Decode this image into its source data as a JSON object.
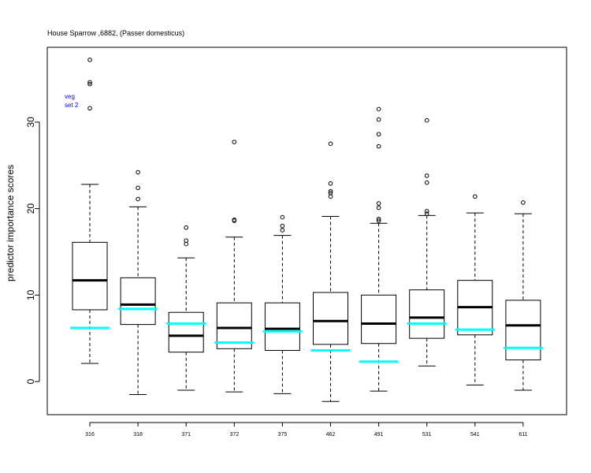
{
  "chart_data": {
    "type": "boxplot",
    "title": "House Sparrow ,6882, (Passer domesticus)",
    "ylabel": "predictor importance scores",
    "xlabel": "",
    "ylim": [
      -4,
      39
    ],
    "yticks": [
      0,
      10,
      20,
      30
    ],
    "legend": {
      "placement": "top-left",
      "lines": [
        "veg",
        "set 2"
      ],
      "color": "#0000ff"
    },
    "highlight_color": "#00ffff",
    "categories": [
      "316",
      "318",
      "371",
      "372",
      "375",
      "462",
      "491",
      "531",
      "541",
      "611"
    ],
    "boxes": [
      {
        "label": "316",
        "whisker_low": 2.1,
        "q1": 8.3,
        "median": 11.7,
        "q3": 16.1,
        "whisker_high": 22.8,
        "outliers": [
          31.6,
          34.4,
          34.6,
          37.2
        ],
        "highlight": 6.2
      },
      {
        "label": "318",
        "whisker_low": -1.5,
        "q1": 6.6,
        "median": 8.9,
        "q3": 12.0,
        "whisker_high": 20.2,
        "outliers": [
          21.1,
          22.4,
          24.2
        ],
        "highlight": 8.4
      },
      {
        "label": "371",
        "whisker_low": -1.0,
        "q1": 3.4,
        "median": 5.3,
        "q3": 8.0,
        "whisker_high": 14.3,
        "outliers": [
          15.9,
          16.3,
          17.8
        ],
        "highlight": 6.7
      },
      {
        "label": "372",
        "whisker_low": -1.2,
        "q1": 3.8,
        "median": 6.2,
        "q3": 9.1,
        "whisker_high": 16.7,
        "outliers": [
          18.6,
          18.7,
          27.7
        ],
        "highlight": 4.5
      },
      {
        "label": "375",
        "whisker_low": -1.4,
        "q1": 3.6,
        "median": 6.1,
        "q3": 9.1,
        "whisker_high": 16.9,
        "outliers": [
          17.5,
          18.0,
          19.0
        ],
        "highlight": 5.8
      },
      {
        "label": "462",
        "whisker_low": -2.3,
        "q1": 4.3,
        "median": 7.0,
        "q3": 10.3,
        "whisker_high": 19.1,
        "outliers": [
          21.4,
          21.8,
          22.0,
          22.9,
          27.5
        ],
        "highlight": 3.6
      },
      {
        "label": "491",
        "whisker_low": -1.1,
        "q1": 4.4,
        "median": 6.7,
        "q3": 10.0,
        "whisker_high": 18.3,
        "outliers": [
          18.6,
          18.8,
          20.1,
          20.6,
          27.2,
          28.6,
          30.3,
          31.5
        ],
        "highlight": 2.3
      },
      {
        "label": "531",
        "whisker_low": 1.8,
        "q1": 5.0,
        "median": 7.4,
        "q3": 10.6,
        "whisker_high": 19.2,
        "outliers": [
          19.4,
          19.7,
          23.0,
          23.8,
          30.2
        ],
        "highlight": 6.7
      },
      {
        "label": "541",
        "whisker_low": -0.4,
        "q1": 5.4,
        "median": 8.6,
        "q3": 11.7,
        "whisker_high": 19.5,
        "outliers": [
          21.4
        ],
        "highlight": 6.0
      },
      {
        "label": "611",
        "whisker_low": -1.0,
        "q1": 2.5,
        "median": 6.5,
        "q3": 9.4,
        "whisker_high": 19.4,
        "outliers": [
          20.7
        ],
        "highlight": 3.9
      }
    ],
    "grid": false
  }
}
